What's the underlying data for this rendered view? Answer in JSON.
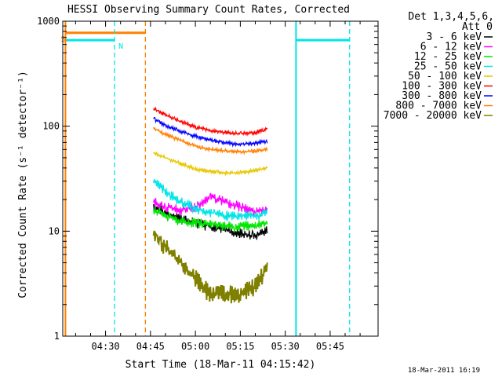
{
  "chart_data": {
    "type": "line",
    "title": "HESSI Observing Summary Count Rates, Corrected",
    "xlabel": "Start Time (18-Mar-11 04:15:42)",
    "ylabel": "Corrected Count Rate (s⁻¹ detector⁻¹)",
    "ylim": [
      1,
      1000
    ],
    "yscale": "log",
    "xlim": [
      255.7,
      361
    ],
    "x_unit": "minutes after 00:00 UT, 18-Mar-2011",
    "x_ticks": [
      {
        "value": 270,
        "label": "04:30"
      },
      {
        "value": 285,
        "label": "04:45"
      },
      {
        "value": 300,
        "label": "05:00"
      },
      {
        "value": 315,
        "label": "05:15"
      },
      {
        "value": 330,
        "label": "05:30"
      },
      {
        "value": 345,
        "label": "05:45"
      }
    ],
    "y_ticks": [
      {
        "value": 1,
        "label": "1"
      },
      {
        "value": 10,
        "label": "10"
      },
      {
        "value": 100,
        "label": "100"
      },
      {
        "value": 1000,
        "label": "1000"
      }
    ],
    "legend_header": [
      "Det 1,3,4,5,6,",
      "Att 0"
    ],
    "legend_position": "right",
    "timestamp": "18-Mar-2011 16:19",
    "flags": [
      {
        "label": "S",
        "color": "#ff8000",
        "segments": [
          [
            256.6,
            283.2
          ]
        ],
        "value": 775
      },
      {
        "label": "N",
        "color": "#00e5e5",
        "segments": [
          [
            256.6,
            273.0
          ],
          [
            333.6,
            351.5
          ]
        ],
        "value": 660
      }
    ],
    "boundaries": [
      {
        "x": 256.6,
        "style": "solid",
        "color": "#ff8000"
      },
      {
        "x": 273.0,
        "style": "dashed",
        "color": "#00e5e5"
      },
      {
        "x": 283.3,
        "style": "dashed",
        "color": "#ff8000"
      },
      {
        "x": 333.6,
        "style": "solid",
        "color": "#00e5e5"
      },
      {
        "x": 351.5,
        "style": "dashed",
        "color": "#00e5e5"
      }
    ],
    "x": [
      286,
      290,
      295,
      300,
      305,
      310,
      315,
      320,
      324
    ],
    "series": [
      {
        "name": "3 - 6 keV",
        "color": "#000000",
        "values": [
          17,
          15,
          13,
          12,
          11,
          10.5,
          9.5,
          9,
          10
        ]
      },
      {
        "name": "6 - 12 keV",
        "color": "#ff00ff",
        "values": [
          19,
          17,
          16,
          17,
          21,
          19,
          17,
          15,
          16
        ]
      },
      {
        "name": "12 - 25 keV",
        "color": "#00e600",
        "values": [
          16,
          14,
          12.5,
          12,
          11.5,
          11,
          11,
          11.5,
          12
        ]
      },
      {
        "name": "25 - 50 keV",
        "color": "#00e5e5",
        "values": [
          30,
          24,
          19,
          16.5,
          15,
          14,
          14,
          14,
          15
        ]
      },
      {
        "name": "50 - 100 keV",
        "color": "#e6c800",
        "values": [
          56,
          50,
          44,
          39,
          37,
          36,
          36,
          38,
          40
        ]
      },
      {
        "name": "100 - 300 keV",
        "color": "#ff0000",
        "values": [
          148,
          128,
          110,
          98,
          91,
          87,
          85,
          87,
          95
        ]
      },
      {
        "name": "300 - 800 keV",
        "color": "#0000ff",
        "values": [
          118,
          102,
          90,
          80,
          74,
          69,
          67,
          69,
          72
        ]
      },
      {
        "name": "800 - 7000 keV",
        "color": "#ff8000",
        "values": [
          96,
          83,
          73,
          65,
          60,
          58,
          57,
          58,
          61
        ]
      },
      {
        "name": "7000 - 20000 keV",
        "color": "#808000",
        "values": [
          10,
          7,
          5,
          3.5,
          2.5,
          2.5,
          2.5,
          3,
          4.5
        ]
      }
    ]
  }
}
